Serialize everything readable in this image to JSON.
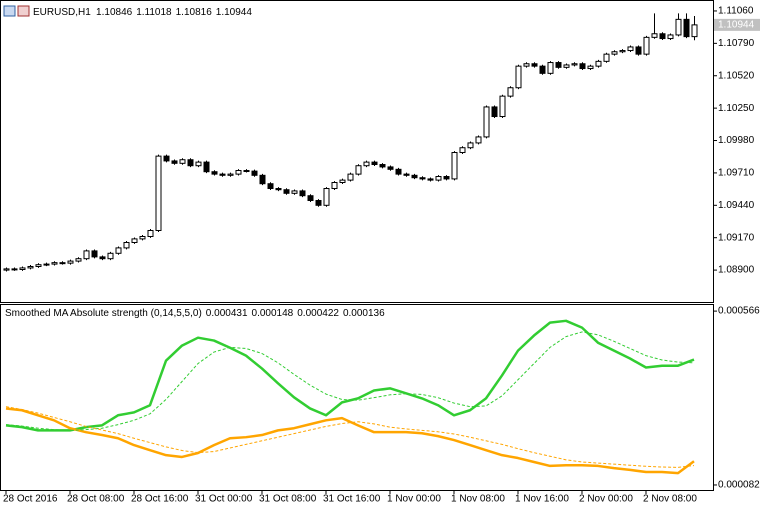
{
  "chart_data": [
    {
      "type": "candlestick",
      "symbol": "EURUSD,H1",
      "categories": [
        "28 Oct 2016",
        null,
        null,
        null,
        null,
        null,
        null,
        null,
        "28 Oct 08:00",
        null,
        null,
        null,
        null,
        null,
        null,
        null,
        "28 Oct 16:00",
        null,
        null,
        null,
        null,
        null,
        null,
        null,
        "31 Oct 00:00",
        null,
        null,
        null,
        null,
        null,
        null,
        null,
        "31 Oct 08:00",
        null,
        null,
        null,
        null,
        null,
        null,
        null,
        "31 Oct 16:00",
        null,
        null,
        null,
        null,
        null,
        null,
        null,
        "1 Nov 00:00",
        null,
        null,
        null,
        null,
        null,
        null,
        null,
        "1 Nov 08:00",
        null,
        null,
        null,
        null,
        null,
        null,
        null,
        "1 Nov 16:00",
        null,
        null,
        null,
        null,
        null,
        null,
        null,
        "2 Nov 00:00",
        null,
        null,
        null,
        null,
        null,
        null,
        null,
        "2 Nov 08:00",
        null,
        null,
        null,
        null,
        null,
        null
      ],
      "open": [
        1.089,
        1.0891,
        1.08905,
        1.08918,
        1.0893,
        1.08945,
        1.0895,
        1.08962,
        1.08958,
        1.08975,
        1.08995,
        1.0906,
        1.0901,
        1.08995,
        1.0904,
        1.09085,
        1.0913,
        1.0916,
        1.0918,
        1.0923,
        1.0985,
        1.0981,
        1.0979,
        1.0982,
        1.0977,
        1.098,
        1.0972,
        1.097,
        1.0969,
        1.097,
        1.0973,
        1.09725,
        1.0969,
        1.0962,
        1.0958,
        1.0957,
        1.0954,
        1.0956,
        1.0952,
        1.0948,
        1.0944,
        1.0958,
        1.0963,
        1.0965,
        1.097,
        1.0977,
        1.098,
        1.0978,
        1.0976,
        1.0974,
        1.097,
        1.0969,
        1.0967,
        1.0966,
        1.0965,
        1.0968,
        1.0966,
        1.0988,
        1.0992,
        1.0996,
        1.1001,
        1.1026,
        1.1018,
        1.1035,
        1.1042,
        1.106,
        1.1062,
        1.106,
        1.1054,
        1.1063,
        1.1059,
        1.1061,
        1.1062,
        1.1058,
        1.106,
        1.1064,
        1.107,
        1.1072,
        1.1073,
        1.1076,
        1.107,
        1.1084,
        1.1087,
        1.1083,
        1.1086,
        1.1099,
        1.10846
      ],
      "high": [
        1.08922,
        1.08922,
        1.0893,
        1.08942,
        1.08957,
        1.08962,
        1.08974,
        1.08974,
        1.08987,
        1.09007,
        1.09072,
        1.09072,
        1.09022,
        1.09052,
        1.09097,
        1.09142,
        1.09172,
        1.09192,
        1.09242,
        1.09862,
        1.09862,
        1.09822,
        1.09832,
        1.09832,
        1.09812,
        1.09812,
        1.09732,
        1.09712,
        1.09712,
        1.09742,
        1.09742,
        1.09737,
        1.09702,
        1.09632,
        1.09592,
        1.09582,
        1.09572,
        1.09572,
        1.09532,
        1.09492,
        1.09592,
        1.09642,
        1.09662,
        1.09712,
        1.09782,
        1.09812,
        1.09812,
        1.09792,
        1.09772,
        1.09752,
        1.09712,
        1.09702,
        1.09682,
        1.09672,
        1.09692,
        1.09692,
        1.09892,
        1.09932,
        1.09972,
        1.10022,
        1.10272,
        1.10272,
        1.10362,
        1.10432,
        1.10612,
        1.10632,
        1.10632,
        1.10612,
        1.10642,
        1.10642,
        1.10622,
        1.10632,
        1.10632,
        1.10612,
        1.10652,
        1.10712,
        1.10732,
        1.10742,
        1.10772,
        1.10772,
        1.10852,
        1.1104,
        1.10882,
        1.10872,
        1.1104,
        1.1104,
        1.11018
      ],
      "low": [
        1.08888,
        1.08893,
        1.08893,
        1.08906,
        1.08918,
        1.08933,
        1.08938,
        1.08946,
        1.08946,
        1.08963,
        1.08983,
        1.08998,
        1.08983,
        1.08983,
        1.09028,
        1.09073,
        1.09118,
        1.09148,
        1.09168,
        1.09218,
        1.09798,
        1.09778,
        1.09778,
        1.09758,
        1.09758,
        1.09708,
        1.09688,
        1.09678,
        1.09678,
        1.09688,
        1.09713,
        1.09678,
        1.09608,
        1.09568,
        1.09558,
        1.09528,
        1.09528,
        1.09508,
        1.09468,
        1.09428,
        1.09428,
        1.09568,
        1.09618,
        1.09638,
        1.09688,
        1.09758,
        1.09768,
        1.09748,
        1.09728,
        1.09688,
        1.09678,
        1.09658,
        1.09648,
        1.09638,
        1.09638,
        1.09648,
        1.09648,
        1.09868,
        1.09908,
        1.09948,
        1.09998,
        1.10168,
        1.10168,
        1.10338,
        1.10408,
        1.10588,
        1.10588,
        1.10528,
        1.10528,
        1.10578,
        1.10578,
        1.10598,
        1.10568,
        1.10568,
        1.10588,
        1.10628,
        1.10688,
        1.10708,
        1.10718,
        1.10688,
        1.10688,
        1.10828,
        1.10818,
        1.10818,
        1.10848,
        1.10834,
        1.10816
      ],
      "close": [
        1.0891,
        1.08905,
        1.08918,
        1.0893,
        1.08945,
        1.0895,
        1.08962,
        1.08958,
        1.08975,
        1.08995,
        1.0906,
        1.0901,
        1.08995,
        1.0904,
        1.09085,
        1.0913,
        1.0916,
        1.0918,
        1.0923,
        1.0985,
        1.0981,
        1.0979,
        1.0982,
        1.0977,
        1.098,
        1.0972,
        1.097,
        1.0969,
        1.097,
        1.0973,
        1.09725,
        1.0969,
        1.0962,
        1.0958,
        1.0957,
        1.0954,
        1.0956,
        1.0952,
        1.0948,
        1.0944,
        1.0958,
        1.0963,
        1.0965,
        1.097,
        1.0977,
        1.098,
        1.0978,
        1.0976,
        1.0974,
        1.097,
        1.0969,
        1.0967,
        1.0966,
        1.0965,
        1.0968,
        1.0966,
        1.0988,
        1.0992,
        1.0996,
        1.1001,
        1.1026,
        1.1018,
        1.1035,
        1.1042,
        1.106,
        1.1062,
        1.106,
        1.1054,
        1.1063,
        1.1059,
        1.1061,
        1.1062,
        1.1058,
        1.106,
        1.1064,
        1.107,
        1.1072,
        1.1073,
        1.1076,
        1.107,
        1.1084,
        1.1087,
        1.1083,
        1.1086,
        1.1099,
        1.10846,
        1.10944
      ],
      "up_color": "#ffffff",
      "down_color": "#000000",
      "outline_color": "#000000",
      "ylim": [
        1.08634,
        1.11143
      ],
      "yticks": [
        {
          "value": 1.1106,
          "label": "1.11060"
        },
        {
          "value": 1.1079,
          "label": "1.10790"
        },
        {
          "value": 1.1052,
          "label": "1.10520"
        },
        {
          "value": 1.1025,
          "label": "1.10250"
        },
        {
          "value": 1.0998,
          "label": "1.09980"
        },
        {
          "value": 1.0971,
          "label": "1.09710"
        },
        {
          "value": 1.0944,
          "label": "1.09440"
        },
        {
          "value": 1.0917,
          "label": "1.09170"
        },
        {
          "value": 1.089,
          "label": "1.08900"
        }
      ]
    },
    {
      "type": "line",
      "title": "Smoothed MA Absolute strength (0,14,5,5,0)",
      "series": [
        {
          "color": "#32cd32",
          "dashed": false,
          "values": [
            0.000248,
            0.000243,
            0.000234,
            0.000234,
            0.000234,
            0.000243,
            0.000248,
            0.000276,
            0.000284,
            0.000304,
            0.000428,
            0.00047,
            0.000492,
            0.000484,
            0.000464,
            0.000442,
            0.000406,
            0.000365,
            0.000326,
            0.000295,
            0.000276,
            0.000312,
            0.000323,
            0.000345,
            0.000351,
            0.000337,
            0.000323,
            0.000304,
            0.000276,
            0.00029,
            0.000323,
            0.000387,
            0.000456,
            0.000498,
            0.000534,
            0.000539,
            0.00052,
            0.000478,
            0.000456,
            0.000434,
            0.000409,
            0.000414,
            0.000414,
            0.000431
          ]
        },
        {
          "color": "#ffa500",
          "dashed": false,
          "values": [
            0.000295,
            0.00029,
            0.000276,
            0.000262,
            0.00024,
            0.000229,
            0.000221,
            0.000212,
            0.000193,
            0.000179,
            0.000165,
            0.00016,
            0.000171,
            0.000193,
            0.000212,
            0.000215,
            0.000221,
            0.000234,
            0.00024,
            0.000251,
            0.000262,
            0.000268,
            0.000248,
            0.000229,
            0.000229,
            0.000229,
            0.000226,
            0.000218,
            0.000207,
            0.000193,
            0.000179,
            0.000165,
            0.000157,
            0.000146,
            0.000135,
            0.000137,
            0.000137,
            0.000135,
            0.000129,
            0.000124,
            0.000118,
            0.000118,
            0.000115,
            0.000148
          ]
        },
        {
          "color": "#32cd32",
          "dashed": true,
          "values": [
            0.00025,
            0.000246,
            0.00024,
            0.000236,
            0.000234,
            0.000236,
            0.00024,
            0.00025,
            0.000262,
            0.00028,
            0.00032,
            0.00037,
            0.00042,
            0.000452,
            0.000465,
            0.000462,
            0.000448,
            0.000422,
            0.00039,
            0.00036,
            0.000335,
            0.00032,
            0.000318,
            0.000325,
            0.000333,
            0.000336,
            0.000334,
            0.000325,
            0.00031,
            0.0003,
            0.000302,
            0.00033,
            0.000375,
            0.00042,
            0.000465,
            0.000495,
            0.000508,
            0.0005,
            0.000482,
            0.000462,
            0.000442,
            0.00043,
            0.000424,
            0.000422
          ]
        },
        {
          "color": "#ffa500",
          "dashed": true,
          "values": [
            0.0003,
            0.000292,
            0.000282,
            0.00027,
            0.000258,
            0.000245,
            0.000235,
            0.000225,
            0.000212,
            0.0002,
            0.000188,
            0.000178,
            0.000172,
            0.000175,
            0.000185,
            0.000195,
            0.000205,
            0.000215,
            0.000225,
            0.000235,
            0.000245,
            0.000253,
            0.000258,
            0.000252,
            0.000243,
            0.000238,
            0.000234,
            0.00023,
            0.000224,
            0.000215,
            0.000205,
            0.000195,
            0.000183,
            0.000172,
            0.000162,
            0.000152,
            0.000146,
            0.000143,
            0.00014,
            0.000137,
            0.000134,
            0.000132,
            0.000131,
            0.000136
          ]
        }
      ],
      "ylim": [
        6.8e-05,
        0.000583
      ],
      "yticks": [
        0.000566,
        8.2e-05
      ]
    }
  ]
}
